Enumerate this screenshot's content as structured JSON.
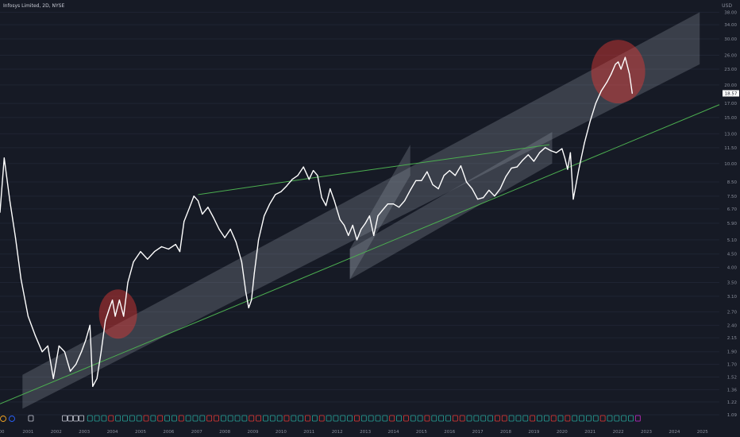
{
  "header": {
    "title": "Infosys Limited, 2D, NYSE",
    "currency": "USD",
    "last_price": "18.57"
  },
  "colors": {
    "background": "#161a25",
    "price_line": "#ffffff",
    "channel": "#9aa0ad",
    "trendline": "#4caf50",
    "highlight": "#e53935",
    "axis_text": "#8a8f9c"
  },
  "chart_data": {
    "type": "line",
    "scale": "log",
    "ylim": [
      1.09,
      40
    ],
    "xlim": [
      2000.0,
      2025.6
    ],
    "y_ticks": [
      "1.09",
      "1.22",
      "1.36",
      "1.52",
      "1.70",
      "1.90",
      "2.15",
      "2.40",
      "2.70",
      "3.10",
      "3.50",
      "4.00",
      "4.50",
      "5.10",
      "5.90",
      "6.70",
      "7.50",
      "8.50",
      "10.00",
      "11.50",
      "13.00",
      "15.00",
      "17.00",
      "20.00",
      "23.00",
      "26.00",
      "30.00",
      "34.00",
      "38.00"
    ],
    "x_ticks": [
      "00",
      "2001",
      "2002",
      "2003",
      "2004",
      "2005",
      "2006",
      "2007",
      "2008",
      "2009",
      "2010",
      "2011",
      "2012",
      "2013",
      "2014",
      "2015",
      "2016",
      "2017",
      "2018",
      "2019",
      "2020",
      "2021",
      "2022",
      "2023",
      "2024",
      "2025"
    ],
    "series": [
      {
        "x": [
          2000.0,
          2000.15,
          2000.35,
          2000.55,
          2000.75,
          2001.0,
          2001.25,
          2001.5,
          2001.7,
          2001.9,
          2002.1,
          2002.3,
          2002.5,
          2002.7,
          2002.9,
          2003.05,
          2003.2,
          2003.3,
          2003.45,
          2003.6,
          2003.75,
          2003.9,
          2004.0,
          2004.1,
          2004.25,
          2004.4,
          2004.55,
          2004.75,
          2005.0,
          2005.25,
          2005.5,
          2005.75,
          2006.0,
          2006.25,
          2006.4,
          2006.55,
          2006.75,
          2006.9,
          2007.05,
          2007.2,
          2007.4,
          2007.6,
          2007.8,
          2008.0,
          2008.2,
          2008.4,
          2008.6,
          2008.75,
          2008.85,
          2008.95,
          2009.05,
          2009.2,
          2009.4,
          2009.6,
          2009.8,
          2010.0,
          2010.2,
          2010.4,
          2010.6,
          2010.8,
          2011.0,
          2011.15,
          2011.3,
          2011.45,
          2011.6,
          2011.75,
          2011.9,
          2012.1,
          2012.25,
          2012.4,
          2012.55,
          2012.7,
          2012.85,
          2013.0,
          2013.15,
          2013.3,
          2013.45,
          2013.6,
          2013.8,
          2014.0,
          2014.2,
          2014.4,
          2014.6,
          2014.8,
          2015.0,
          2015.2,
          2015.4,
          2015.6,
          2015.8,
          2016.0,
          2016.2,
          2016.4,
          2016.6,
          2016.8,
          2017.0,
          2017.2,
          2017.4,
          2017.6,
          2017.8,
          2018.0,
          2018.2,
          2018.4,
          2018.6,
          2018.8,
          2019.0,
          2019.2,
          2019.4,
          2019.6,
          2019.8,
          2020.0,
          2020.1,
          2020.2,
          2020.3,
          2020.4,
          2020.6,
          2020.8,
          2021.0,
          2021.2,
          2021.4,
          2021.6,
          2021.75,
          2021.9,
          2022.0,
          2022.1,
          2022.25,
          2022.4,
          2022.5
        ],
        "y": [
          6.5,
          10.5,
          7.2,
          5.2,
          3.6,
          2.6,
          2.2,
          1.9,
          2.0,
          1.5,
          2.0,
          1.9,
          1.6,
          1.7,
          1.9,
          2.1,
          2.4,
          1.4,
          1.5,
          1.9,
          2.5,
          2.8,
          3.0,
          2.6,
          3.0,
          2.6,
          3.5,
          4.2,
          4.6,
          4.3,
          4.6,
          4.8,
          4.7,
          4.9,
          4.6,
          6.0,
          6.8,
          7.5,
          7.2,
          6.4,
          6.8,
          6.2,
          5.6,
          5.2,
          5.6,
          5.0,
          4.2,
          3.2,
          2.8,
          3.0,
          3.8,
          5.1,
          6.3,
          7.0,
          7.6,
          7.8,
          8.2,
          8.7,
          9.0,
          9.7,
          8.7,
          9.4,
          9.0,
          7.4,
          6.9,
          8.0,
          7.2,
          6.1,
          5.8,
          5.3,
          5.8,
          5.1,
          5.6,
          5.9,
          6.3,
          5.3,
          6.3,
          6.6,
          7.0,
          7.0,
          6.8,
          7.2,
          7.9,
          8.6,
          8.6,
          9.3,
          8.3,
          8.0,
          9.0,
          9.4,
          9.0,
          9.8,
          8.5,
          8.0,
          7.3,
          7.4,
          7.9,
          7.5,
          8.0,
          8.9,
          9.6,
          9.7,
          10.3,
          10.8,
          10.2,
          11.0,
          11.5,
          11.2,
          11.0,
          11.4,
          10.5,
          9.5,
          11.0,
          7.3,
          9.5,
          12.0,
          14.5,
          17.0,
          19.0,
          20.5,
          22.0,
          24.0,
          24.5,
          23.0,
          25.5,
          22.0,
          18.57
        ]
      }
    ]
  }
}
